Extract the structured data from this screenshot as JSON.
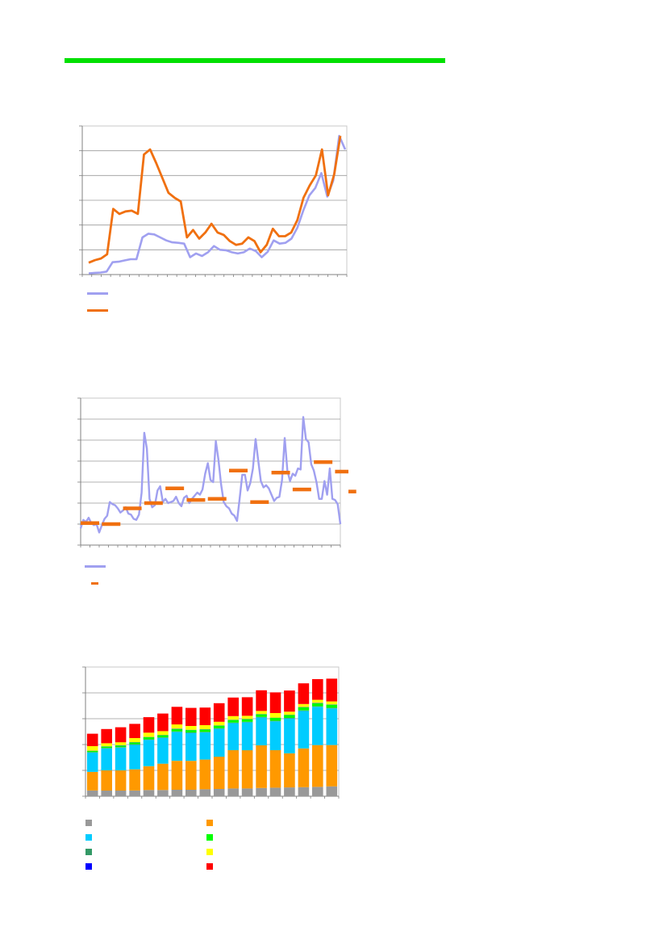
{
  "header_rule_color": "#00e000",
  "charts": [
    {
      "type": "line",
      "title": "",
      "xlabel": "",
      "ylabel": "",
      "grid": true,
      "ylim": [
        0,
        6
      ],
      "series": [
        {
          "name": "",
          "color": "#a0a0f0",
          "values": [
            0.05,
            0.07,
            0.08,
            0.12,
            0.5,
            0.52,
            0.57,
            0.62,
            0.62,
            1.5,
            1.65,
            1.62,
            1.5,
            1.38,
            1.3,
            1.28,
            1.25,
            0.7,
            0.85,
            0.75,
            0.9,
            1.15,
            1.0,
            0.98,
            0.9,
            0.85,
            0.9,
            1.05,
            0.95,
            0.7,
            0.92,
            1.38,
            1.25,
            1.28,
            1.45,
            1.9,
            2.6,
            3.2,
            3.5,
            4.1,
            3.15,
            3.8,
            5.6,
            5.05
          ]
        },
        {
          "name": "",
          "color": "#f07010",
          "values": [
            0.48,
            0.58,
            0.65,
            0.82,
            2.65,
            2.45,
            2.55,
            2.58,
            2.45,
            4.85,
            5.05,
            4.5,
            3.9,
            3.3,
            3.1,
            2.95,
            1.5,
            1.8,
            1.45,
            1.7,
            2.05,
            1.7,
            1.6,
            1.35,
            1.2,
            1.25,
            1.5,
            1.35,
            0.9,
            1.2,
            1.85,
            1.55,
            1.55,
            1.7,
            2.2,
            3.1,
            3.6,
            4.0,
            5.05,
            3.2,
            4.05,
            5.6
          ]
        }
      ]
    },
    {
      "type": "line",
      "title": "",
      "xlabel": "",
      "ylabel": "",
      "grid": true,
      "ylim": [
        0,
        7
      ],
      "series": [
        {
          "name": "",
          "color": "#a0a0f0",
          "values": [
            0.8,
            1.2,
            1.1,
            1.3,
            1.05,
            0.95,
            1.0,
            0.6,
            0.95,
            1.25,
            1.4,
            2.05,
            1.95,
            1.9,
            1.75,
            1.55,
            1.65,
            1.8,
            1.5,
            1.45,
            1.25,
            1.2,
            1.45,
            2.5,
            5.35,
            4.6,
            2.2,
            1.8,
            1.9,
            2.6,
            2.8,
            2.05,
            2.2,
            2.0,
            2.05,
            2.1,
            2.3,
            2.0,
            1.85,
            2.25,
            2.35,
            2.0,
            2.2,
            2.35,
            2.5,
            2.4,
            2.65,
            3.4,
            3.9,
            3.1,
            3.0,
            4.95,
            4.05,
            2.9,
            2.05,
            1.85,
            1.75,
            1.5,
            1.4,
            1.15,
            2.2,
            3.35,
            3.35,
            2.6,
            2.95,
            3.65,
            5.05,
            4.05,
            3.05,
            2.75,
            2.85,
            2.7,
            2.4,
            2.1,
            2.25,
            2.3,
            3.1,
            5.1,
            3.55,
            3.05,
            3.4,
            3.3,
            3.65,
            3.6,
            6.1,
            5.05,
            4.9,
            3.85,
            3.55,
            3.0,
            2.2,
            2.2,
            3.05,
            2.4,
            3.65,
            2.2,
            2.15,
            1.95,
            1.0
          ]
        }
      ],
      "segments": {
        "name": "",
        "color": "#f07010",
        "items": [
          {
            "x_start": 0,
            "x_end": 7,
            "value": 1.05
          },
          {
            "x_start": 8,
            "x_end": 15,
            "value": 1.0
          },
          {
            "x_start": 16,
            "x_end": 23,
            "value": 1.75
          },
          {
            "x_start": 24,
            "x_end": 31,
            "value": 2.0
          },
          {
            "x_start": 32,
            "x_end": 39,
            "value": 2.7
          },
          {
            "x_start": 40,
            "x_end": 47,
            "value": 2.15
          },
          {
            "x_start": 48,
            "x_end": 55,
            "value": 2.2
          },
          {
            "x_start": 56,
            "x_end": 63,
            "value": 3.55
          },
          {
            "x_start": 64,
            "x_end": 71,
            "value": 2.05
          },
          {
            "x_start": 72,
            "x_end": 79,
            "value": 3.45
          },
          {
            "x_start": 80,
            "x_end": 87,
            "value": 2.65
          },
          {
            "x_start": 88,
            "x_end": 95,
            "value": 3.95
          },
          {
            "x_start": 96,
            "x_end": 103,
            "value": 3.5
          },
          {
            "x_start": 104,
            "x_end": 111,
            "value": 2.55
          }
        ]
      }
    },
    {
      "type": "bar",
      "stacked": true,
      "title": "",
      "xlabel": "",
      "ylabel": "",
      "grid": true,
      "ylim": [
        0,
        5
      ],
      "categories": [
        "",
        "",
        "",
        "",
        "",
        "",
        "",
        "",
        "",
        "",
        "",
        "",
        "",
        "",
        "",
        "",
        "",
        ""
      ],
      "series": [
        {
          "name": "",
          "color": "#999999",
          "values": [
            0.22,
            0.22,
            0.22,
            0.22,
            0.24,
            0.24,
            0.25,
            0.25,
            0.27,
            0.28,
            0.3,
            0.3,
            0.32,
            0.33,
            0.34,
            0.35,
            0.36,
            0.38
          ]
        },
        {
          "name": "",
          "color": "#ff9900",
          "values": [
            0.72,
            0.78,
            0.78,
            0.82,
            0.92,
            1.02,
            1.12,
            1.12,
            1.15,
            1.25,
            1.48,
            1.48,
            1.65,
            1.45,
            1.32,
            1.5,
            1.62,
            1.6
          ]
        },
        {
          "name": "",
          "color": "#00ccff",
          "values": [
            0.75,
            0.85,
            0.88,
            0.95,
            1.02,
            1.0,
            1.12,
            1.08,
            1.05,
            1.08,
            1.05,
            1.08,
            1.08,
            1.12,
            1.35,
            1.45,
            1.48,
            1.42
          ]
        },
        {
          "name": "",
          "color": "#339966",
          "values": [
            0.02,
            0.02,
            0.02,
            0.02,
            0.02,
            0.02,
            0.02,
            0.02,
            0.02,
            0.02,
            0.02,
            0.02,
            0.02,
            0.02,
            0.02,
            0.02,
            0.02,
            0.02
          ]
        },
        {
          "name": "",
          "color": "#00ff00",
          "values": [
            0.04,
            0.05,
            0.06,
            0.07,
            0.08,
            0.08,
            0.09,
            0.09,
            0.09,
            0.1,
            0.1,
            0.1,
            0.1,
            0.11,
            0.11,
            0.12,
            0.12,
            0.12
          ]
        },
        {
          "name": "",
          "color": "#0000ff",
          "values": [
            0.01,
            0.01,
            0.01,
            0.01,
            0.01,
            0.01,
            0.01,
            0.01,
            0.01,
            0.01,
            0.01,
            0.01,
            0.01,
            0.01,
            0.01,
            0.01,
            0.01,
            0.01
          ]
        },
        {
          "name": "",
          "color": "#ffff00",
          "values": [
            0.18,
            0.12,
            0.12,
            0.16,
            0.17,
            0.15,
            0.17,
            0.15,
            0.16,
            0.14,
            0.14,
            0.12,
            0.12,
            0.18,
            0.12,
            0.12,
            0.12,
            0.12
          ]
        },
        {
          "name": "",
          "color": "#ff0000",
          "values": [
            0.48,
            0.55,
            0.58,
            0.55,
            0.6,
            0.68,
            0.68,
            0.7,
            0.68,
            0.72,
            0.72,
            0.72,
            0.8,
            0.8,
            0.82,
            0.8,
            0.8,
            0.88
          ]
        }
      ]
    }
  ]
}
